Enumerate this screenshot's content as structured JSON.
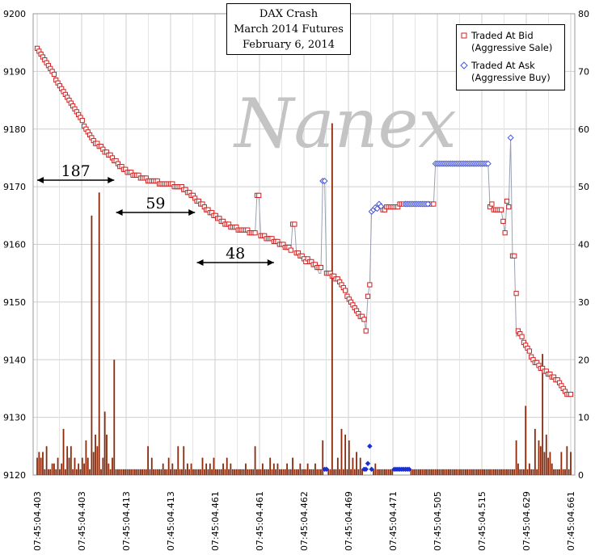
{
  "chart_data": {
    "type": "line",
    "title": "DAX Crash",
    "subtitle_lines": [
      "March 2014 Futures",
      "February 6, 2014"
    ],
    "watermark": "Nanex",
    "left_axis": {
      "min": 9120,
      "max": 9200,
      "ticks": [
        "9120",
        "9130",
        "9140",
        "9150",
        "9160",
        "9170",
        "9180",
        "9190",
        "9200"
      ]
    },
    "right_axis": {
      "min": 0,
      "max": 80,
      "ticks": [
        "0",
        "10",
        "20",
        "30",
        "40",
        "50",
        "60",
        "70",
        "80"
      ]
    },
    "x_tick_labels": [
      "07:45:04.403",
      "07:45:04.403",
      "07:45:04.413",
      "07:45:04.413",
      "07:45:04.461",
      "07:45:04.461",
      "07:45:04.462",
      "07:45:04.469",
      "07:45:04.471",
      "07:45:04.505",
      "07:45:04.515",
      "07:45:04.629",
      "07:45:04.661"
    ],
    "grid": true,
    "legend_placement": "top-right",
    "series": [
      {
        "name": "Traded At Bid\n(Aggressive Sale)",
        "marker": "square",
        "color": "#cc2222"
      },
      {
        "name": "Traded At Ask\n(Aggressive Buy)",
        "marker": "diamond",
        "color": "#4455dd"
      }
    ],
    "bid_anchors": [
      [
        0,
        9194
      ],
      [
        18,
        9184.5
      ],
      [
        30,
        9178
      ],
      [
        40,
        9175
      ],
      [
        46,
        9173
      ],
      [
        52,
        9172
      ],
      [
        60,
        9171
      ],
      [
        68,
        9170.5
      ],
      [
        76,
        9170
      ],
      [
        84,
        9168
      ],
      [
        92,
        9165.5
      ],
      [
        100,
        9163.5
      ],
      [
        108,
        9162.5
      ],
      [
        116,
        9162
      ],
      [
        118,
        9161.5
      ],
      [
        124,
        9161
      ],
      [
        130,
        9160
      ],
      [
        136,
        9159
      ],
      [
        141,
        9158
      ],
      [
        150,
        9156
      ],
      [
        152,
        9155.5
      ],
      [
        160,
        9154
      ],
      [
        168,
        9149.5
      ],
      [
        172,
        9147.5
      ],
      [
        174,
        9147
      ],
      [
        178,
        9155
      ],
      [
        182,
        9166
      ],
      [
        196,
        9167
      ],
      [
        236,
        9167
      ],
      [
        246,
        9166
      ],
      [
        250,
        9167.5
      ],
      [
        254,
        9158
      ],
      [
        256,
        9145
      ],
      [
        264,
        9140
      ],
      [
        270,
        9138
      ],
      [
        278,
        9136
      ],
      [
        282,
        9134
      ]
    ],
    "bid_overrides": [
      [
        117,
        9168.5
      ],
      [
        118,
        9168.5
      ],
      [
        136,
        9163.5
      ],
      [
        137,
        9163.5
      ],
      [
        142,
        9157.5
      ],
      [
        143,
        9157
      ],
      [
        175,
        9145
      ],
      [
        182,
        9165
      ],
      [
        183,
        9164.5
      ],
      [
        242,
        9167
      ],
      [
        243,
        9166
      ],
      [
        247,
        9166
      ],
      [
        248,
        9164
      ],
      [
        249,
        9162
      ],
      [
        250,
        9167.5
      ],
      [
        251,
        9166.5
      ],
      [
        253,
        9158
      ],
      [
        254,
        9158
      ]
    ],
    "ask_points": [
      [
        152,
        9171
      ],
      [
        153,
        9171
      ],
      [
        178,
        9165.7
      ],
      [
        179,
        9166
      ],
      [
        180,
        9166.4
      ],
      [
        181,
        9166.2
      ],
      [
        182,
        9167
      ],
      [
        183,
        9166.6
      ],
      [
        196,
        9167
      ],
      [
        208,
        9167
      ],
      [
        212,
        9174
      ],
      [
        240,
        9174
      ],
      [
        252,
        9178.5
      ]
    ],
    "line_override": [
      [
        150,
        9155
      ],
      [
        151,
        9155
      ],
      [
        152,
        9171
      ],
      [
        153,
        9171
      ],
      [
        154,
        9155
      ],
      [
        252,
        9178.5
      ],
      [
        253,
        9158
      ],
      [
        254,
        9158
      ],
      [
        255,
        9144
      ]
    ],
    "volume_bars": {
      "count": 285,
      "base": 1,
      "color": "#8b2a0a",
      "spikes": [
        [
          0,
          3
        ],
        [
          1,
          4
        ],
        [
          2,
          3
        ],
        [
          3,
          4
        ],
        [
          5,
          5
        ],
        [
          8,
          2
        ],
        [
          9,
          2
        ],
        [
          11,
          3
        ],
        [
          13,
          2
        ],
        [
          14,
          8
        ],
        [
          16,
          5
        ],
        [
          17,
          3
        ],
        [
          18,
          5
        ],
        [
          20,
          3
        ],
        [
          22,
          2
        ],
        [
          24,
          3
        ],
        [
          25,
          2
        ],
        [
          26,
          6
        ],
        [
          27,
          3
        ],
        [
          29,
          45
        ],
        [
          30,
          4
        ],
        [
          31,
          7
        ],
        [
          32,
          5
        ],
        [
          33,
          49
        ],
        [
          35,
          3
        ],
        [
          36,
          11
        ],
        [
          37,
          7
        ],
        [
          38,
          2
        ],
        [
          40,
          3
        ],
        [
          41,
          20
        ],
        [
          59,
          5
        ],
        [
          61,
          3
        ],
        [
          67,
          2
        ],
        [
          70,
          3
        ],
        [
          72,
          2
        ],
        [
          75,
          5
        ],
        [
          78,
          5
        ],
        [
          80,
          2
        ],
        [
          82,
          2
        ],
        [
          88,
          3
        ],
        [
          90,
          2
        ],
        [
          92,
          2
        ],
        [
          94,
          3
        ],
        [
          99,
          2
        ],
        [
          101,
          3
        ],
        [
          103,
          2
        ],
        [
          111,
          2
        ],
        [
          116,
          5
        ],
        [
          120,
          2
        ],
        [
          124,
          3
        ],
        [
          126,
          2
        ],
        [
          128,
          2
        ],
        [
          133,
          2
        ],
        [
          136,
          3
        ],
        [
          140,
          2
        ],
        [
          144,
          2
        ],
        [
          148,
          2
        ],
        [
          152,
          6
        ],
        [
          157,
          61
        ],
        [
          160,
          3
        ],
        [
          162,
          8
        ],
        [
          164,
          7
        ],
        [
          166,
          6
        ],
        [
          168,
          3
        ],
        [
          170,
          4
        ],
        [
          172,
          3
        ],
        [
          174,
          2
        ],
        [
          176,
          2
        ],
        [
          180,
          2
        ]
      ],
      "blue_diamonds": [
        [
          153,
          1
        ],
        [
          154,
          1
        ],
        [
          174,
          1
        ],
        [
          175,
          1
        ],
        [
          176,
          2
        ],
        [
          177,
          5
        ],
        [
          178,
          1
        ],
        [
          190,
          1
        ],
        [
          191,
          1
        ],
        [
          192,
          1
        ],
        [
          193,
          1
        ],
        [
          194,
          1
        ],
        [
          195,
          1
        ],
        [
          196,
          1
        ],
        [
          197,
          1
        ],
        [
          198,
          1
        ]
      ],
      "spikes_late": [
        [
          255,
          6
        ],
        [
          256,
          2
        ],
        [
          260,
          12
        ],
        [
          262,
          2
        ],
        [
          265,
          8
        ],
        [
          267,
          6
        ],
        [
          268,
          5
        ],
        [
          269,
          21
        ],
        [
          270,
          4
        ],
        [
          271,
          7
        ],
        [
          272,
          3
        ],
        [
          273,
          4
        ],
        [
          274,
          2
        ],
        [
          279,
          4
        ],
        [
          282,
          5
        ],
        [
          284,
          4
        ]
      ]
    },
    "annotations": [
      {
        "label": "187"
      },
      {
        "label": "59"
      },
      {
        "label": "48"
      }
    ]
  }
}
